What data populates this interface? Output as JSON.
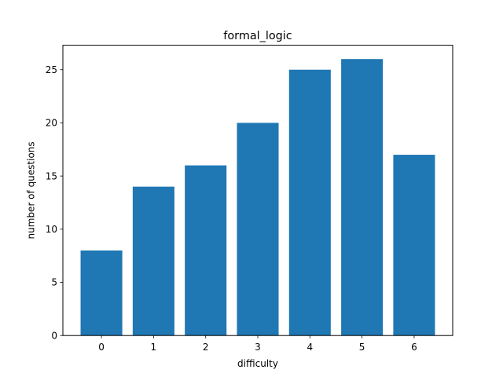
{
  "chart_data": {
    "type": "bar",
    "title": "formal_logic",
    "xlabel": "difficulty",
    "ylabel": "number of questions",
    "categories": [
      "0",
      "1",
      "2",
      "3",
      "4",
      "5",
      "6"
    ],
    "values": [
      8,
      14,
      16,
      20,
      25,
      26,
      17
    ],
    "ylim": [
      0,
      27.3
    ],
    "yticks": [
      0,
      5,
      10,
      15,
      20,
      25
    ],
    "bar_color": "#1f77b4",
    "grid": false,
    "legend": "none"
  }
}
